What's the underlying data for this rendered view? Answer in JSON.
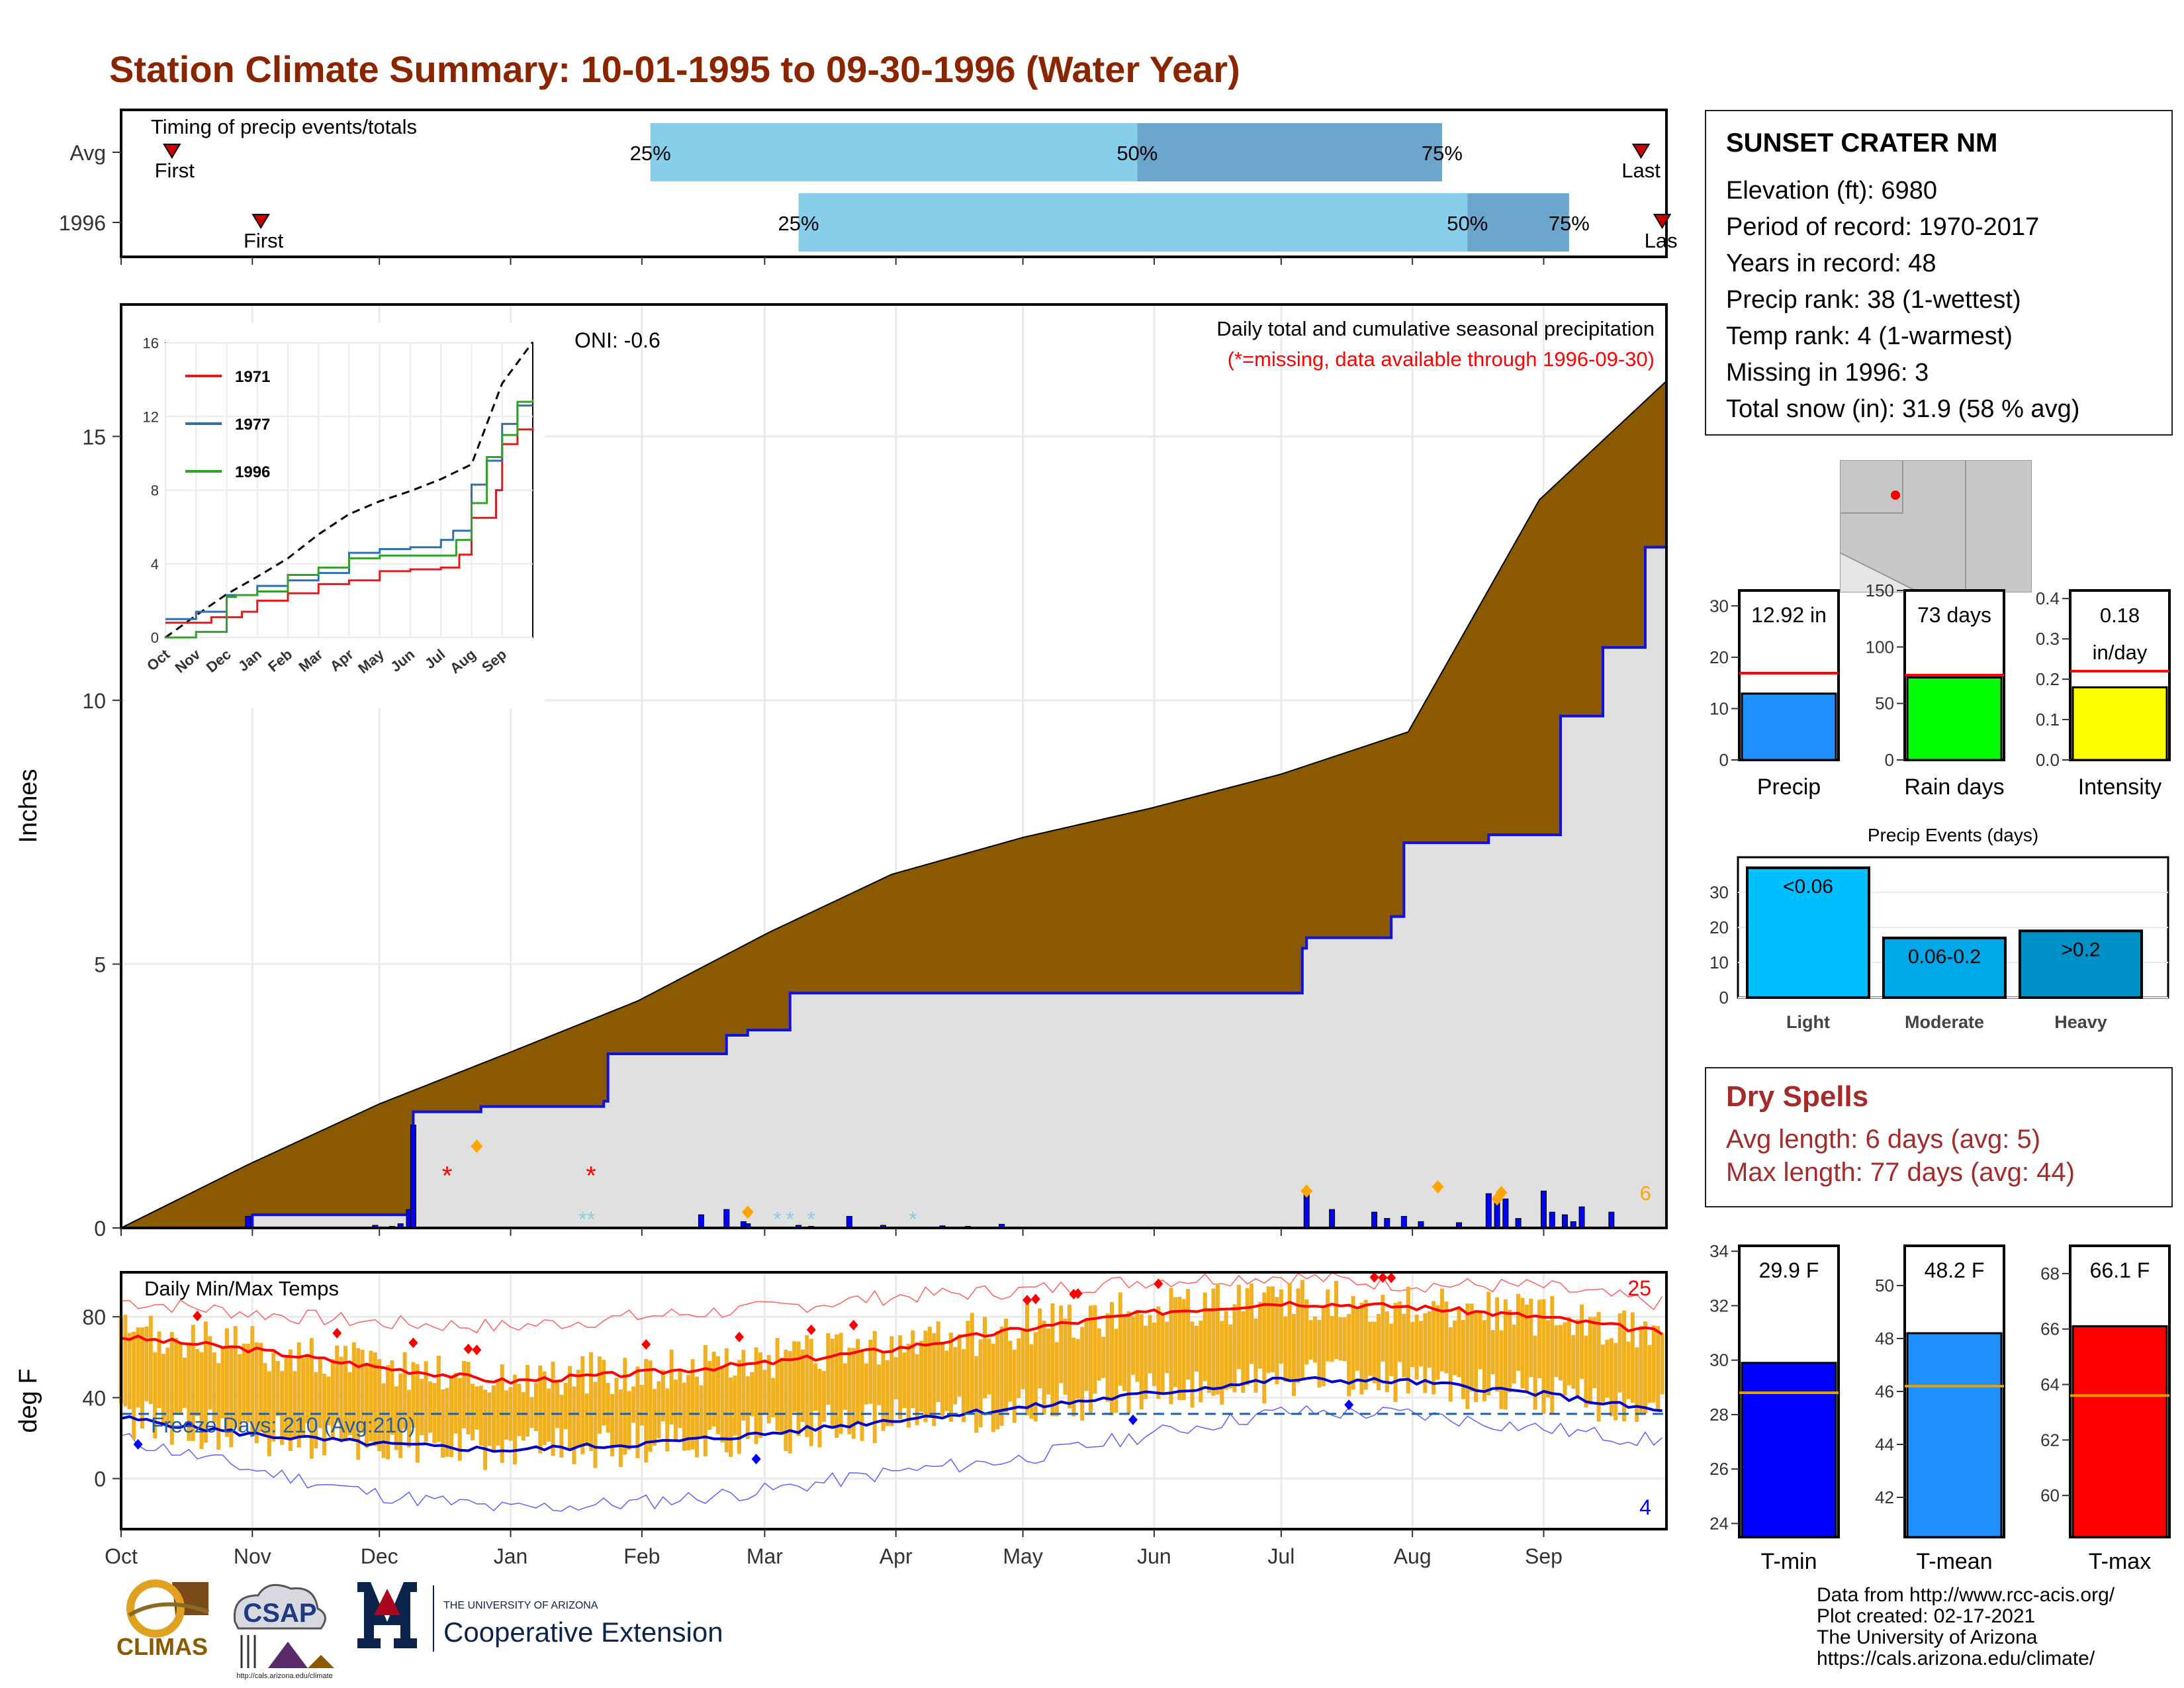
{
  "title": "Station Climate Summary: 10-01-1995 to 09-30-1996 (Water Year)",
  "station": {
    "name": "SUNSET CRATER NM",
    "lines": [
      "Elevation (ft): 6980",
      "Period of record: 1970-2017",
      "Years in record: 48",
      "Precip rank: 38 (1-wettest)",
      "Temp rank: 4 (1-warmest)",
      "Missing in 1996: 3",
      "Total snow (in): 31.9 (58 % avg)"
    ]
  },
  "dry_spells": {
    "title": "Dry Spells",
    "avg": "Avg length: 6 days (avg: 5)",
    "max": "Max length: 77 days (avg: 44)"
  },
  "credits": [
    "Data from http://www.rcc-acis.org/",
    "Plot created: 02-17-2021",
    "The University of Arizona",
    "https://cals.arizona.edu/climate/"
  ],
  "logos": {
    "climas": "CLIMAS",
    "csap": "CSAP",
    "csap_url": "http://cals.arizona.edu/climate",
    "ua_small": "THE UNIVERSITY OF ARIZONA",
    "ua_ext": "Cooperative Extension"
  },
  "colors": {
    "title": "#8b2500",
    "cum_avg": "#8b5a00",
    "cum_year": "#e0e0e0",
    "year_line": "#1010e0",
    "light_blue": "#87ceeb",
    "mid_blue": "#6ca6cd",
    "temp_bar": "#f0b020",
    "tmax_avg": "#ff0000",
    "tmin_avg": "#0000cc",
    "freeze": "#1f5faa"
  },
  "chart_data": [
    {
      "id": "timing",
      "type": "bar",
      "title": "Timing of precip events/totals",
      "categories": [
        "Avg",
        "1996"
      ],
      "x_domain": [
        0,
        365
      ],
      "rows": [
        {
          "label": "Avg",
          "first": 12,
          "p25": 125,
          "p50": 240,
          "p75": 312,
          "last": 359,
          "first_label": "First",
          "last_label": "Last"
        },
        {
          "label": "1996",
          "first": 33,
          "p25": 160,
          "p50": 318,
          "p75": 342,
          "last": 364,
          "first_label": "First",
          "last_label": "Las"
        }
      ],
      "pct_labels": [
        "25%",
        "50%",
        "75%"
      ]
    },
    {
      "id": "cumulative",
      "type": "area",
      "title": "Daily total and cumulative seasonal precipitation",
      "subtitle": "(*=missing, data available through 1996-09-30)",
      "ylabel": "Inches",
      "ylim": [
        0,
        17.5
      ],
      "yticks": [
        0,
        5,
        10,
        15
      ],
      "oni": "ONI: -0.6",
      "corner_count": "6",
      "avg_cumulative": {
        "x": [
          0,
          30,
          61,
          91,
          122,
          153,
          182,
          213,
          243,
          274,
          304,
          335,
          365
        ],
        "y": [
          0,
          1.2,
          2.35,
          3.3,
          4.3,
          5.6,
          6.7,
          7.4,
          7.95,
          8.6,
          9.4,
          13.8,
          16.05
        ]
      },
      "year_cumulative": {
        "x": [
          0,
          30,
          31,
          68,
          69,
          84,
          85,
          114,
          115,
          143,
          148,
          158,
          190,
          200,
          221,
          259,
          279,
          280,
          300,
          303,
          323,
          340,
          350,
          360,
          365
        ],
        "y": [
          0,
          0,
          0.25,
          0.28,
          2.2,
          2.2,
          2.3,
          2.4,
          3.3,
          3.65,
          3.75,
          4.45,
          4.45,
          4.45,
          4.45,
          4.45,
          5.3,
          5.5,
          5.9,
          7.3,
          7.45,
          9.7,
          11.0,
          12.9,
          12.92
        ]
      },
      "daily_precip": {
        "x": [
          30,
          60,
          64,
          66,
          68,
          69,
          137,
          143,
          147,
          148,
          160,
          163,
          172,
          180,
          194,
          200,
          208,
          280,
          286,
          296,
          299,
          303,
          307,
          316,
          323,
          325,
          327,
          330,
          336,
          338,
          341,
          343,
          345,
          352
        ],
        "y": [
          0.22,
          0.05,
          0.03,
          0.08,
          0.35,
          1.95,
          0.25,
          0.35,
          0.12,
          0.08,
          0.05,
          0.03,
          0.22,
          0.05,
          0.04,
          0.03,
          0.07,
          0.75,
          0.35,
          0.3,
          0.18,
          0.22,
          0.12,
          0.1,
          0.65,
          0.48,
          0.55,
          0.18,
          0.7,
          0.3,
          0.25,
          0.12,
          0.4,
          0.3
        ]
      },
      "missing_marks": [
        77,
        111
      ],
      "snow_marks": [
        109,
        111,
        155,
        158,
        163,
        187
      ],
      "highlight_marks": [
        {
          "x": 84,
          "y": 1.55
        },
        {
          "x": 148,
          "y": 0.3
        },
        {
          "x": 280,
          "y": 0.7
        },
        {
          "x": 311,
          "y": 0.78
        },
        {
          "x": 325,
          "y": 0.55
        },
        {
          "x": 326,
          "y": 0.67
        }
      ],
      "red_highlights": [
        {
          "x": 77,
          "y": 1.0
        },
        {
          "x": 111,
          "y": 1.0
        }
      ],
      "x_tick_labels": [
        "Oct",
        "Nov",
        "Dec",
        "Jan",
        "Feb",
        "Mar",
        "Apr",
        "May",
        "Jun",
        "Jul",
        "Aug",
        "Sep"
      ],
      "x_tick_days": [
        0,
        31,
        61,
        92,
        123,
        152,
        183,
        213,
        244,
        274,
        305,
        336
      ]
    },
    {
      "id": "inset",
      "type": "line",
      "ylim": [
        0,
        16
      ],
      "yticks": [
        0,
        4,
        8,
        12,
        16
      ],
      "x_tick_labels": [
        "Oct",
        "Nov",
        "Dec",
        "Jan",
        "Feb",
        "Mar",
        "Apr",
        "May",
        "Jun",
        "Jul",
        "Aug",
        "Sep"
      ],
      "series": [
        {
          "name": "1971",
          "color": "#e31a1c",
          "x": [
            0,
            1.5,
            2.5,
            3.0,
            4.0,
            5.0,
            6.0,
            7.0,
            8.0,
            9.0,
            9.6,
            10.0,
            10.8,
            11.0,
            11.5,
            12.0
          ],
          "y": [
            0.8,
            1.1,
            1.4,
            2.0,
            2.4,
            2.9,
            3.1,
            3.6,
            3.7,
            3.8,
            4.5,
            6.5,
            8.0,
            10.5,
            11.3,
            11.4
          ]
        },
        {
          "name": "1977",
          "color": "#3070b0",
          "x": [
            0,
            1.0,
            2.0,
            3.0,
            4.0,
            5.0,
            6.0,
            7.0,
            8.0,
            9.0,
            9.4,
            10.0,
            10.5,
            11.0,
            11.5,
            12.0
          ],
          "y": [
            1.0,
            1.4,
            2.3,
            2.8,
            3.1,
            3.5,
            4.6,
            4.8,
            4.9,
            5.3,
            5.8,
            8.3,
            9.6,
            11.6,
            12.6,
            12.6
          ]
        },
        {
          "name": "1996",
          "color": "#33a02c",
          "x": [
            0,
            1.0,
            2.0,
            2.3,
            3.0,
            4.0,
            5.0,
            6.0,
            7.0,
            8.0,
            9.0,
            9.5,
            10.0,
            10.5,
            11.0,
            11.5,
            12.0
          ],
          "y": [
            0,
            0.3,
            2.2,
            2.3,
            2.5,
            3.4,
            3.8,
            4.3,
            4.45,
            4.45,
            4.45,
            5.3,
            7.3,
            9.8,
            11.0,
            12.8,
            12.92
          ]
        }
      ],
      "average": {
        "x": [
          0,
          1,
          2,
          3,
          4,
          5,
          6,
          7,
          8,
          9,
          10,
          11,
          12
        ],
        "y": [
          0,
          1.2,
          2.35,
          3.3,
          4.3,
          5.6,
          6.7,
          7.4,
          7.95,
          8.6,
          9.4,
          13.8,
          16.05
        ]
      }
    },
    {
      "id": "temps",
      "type": "bar",
      "title": "Daily Min/Max Temps",
      "ylabel": "deg F",
      "ylim": [
        -25,
        102
      ],
      "yticks": [
        0,
        40,
        80
      ],
      "freeze_label": "Freeze Days: 210 (Avg:210)",
      "freeze_line": 32,
      "hot_count": "25",
      "cold_count": "4",
      "tmax_avg": {
        "x": [
          0,
          30,
          61,
          91,
          122,
          152,
          182,
          213,
          243,
          274,
          304,
          335,
          365
        ],
        "y": [
          70,
          64,
          55,
          48,
          52,
          57,
          64,
          74,
          82,
          87,
          85,
          80,
          72
        ]
      },
      "tmin_avg": {
        "x": [
          0,
          30,
          61,
          91,
          122,
          152,
          182,
          213,
          243,
          274,
          304,
          335,
          365
        ],
        "y": [
          30,
          22,
          17,
          14,
          17,
          22,
          29,
          35,
          42,
          49,
          48,
          42,
          33
        ]
      },
      "record_hi": {
        "x": [
          0,
          30,
          61,
          91,
          122,
          152,
          182,
          213,
          243,
          274,
          304,
          335,
          365
        ],
        "y": [
          88,
          82,
          77,
          75,
          80,
          84,
          90,
          93,
          98,
          100,
          96,
          95,
          86
        ]
      },
      "record_lo": {
        "x": [
          0,
          30,
          61,
          91,
          122,
          152,
          182,
          213,
          243,
          274,
          304,
          335,
          365
        ],
        "y": [
          20,
          5,
          -8,
          -15,
          -12,
          -6,
          3,
          10,
          22,
          33,
          32,
          25,
          18
        ]
      },
      "x_tick_labels": [
        "Oct",
        "Nov",
        "Dec",
        "Jan",
        "Feb",
        "Mar",
        "Apr",
        "May",
        "Jun",
        "Jul",
        "Aug",
        "Sep"
      ],
      "x_tick_days": [
        0,
        31,
        61,
        92,
        123,
        152,
        183,
        213,
        244,
        274,
        305,
        336
      ]
    },
    {
      "id": "precip_bars",
      "type": "bar",
      "panels": [
        {
          "label": "Precip",
          "value_label": "12.92 in",
          "value": 12.92,
          "avg": 16.9,
          "ylim": [
            0,
            33
          ],
          "yticks": [
            0,
            10,
            20,
            30
          ],
          "color": "#1e90ff"
        },
        {
          "label": "Rain days",
          "value_label": "73 days",
          "value": 73,
          "avg": 75,
          "ylim": [
            0,
            150
          ],
          "yticks": [
            0,
            50,
            100,
            150
          ],
          "color": "#00ff00"
        },
        {
          "label": "Intensity",
          "value_labels": [
            "0.18",
            "in/day"
          ],
          "value": 0.18,
          "avg": 0.22,
          "ylim": [
            0,
            0.42
          ],
          "yticks": [
            0.0,
            0.1,
            0.2,
            0.3,
            0.4
          ],
          "color": "#ffff00"
        }
      ]
    },
    {
      "id": "events",
      "type": "bar",
      "title": "Precip Events (days)",
      "categories": [
        "Light",
        "Moderate",
        "Heavy"
      ],
      "values": [
        37,
        17,
        19
      ],
      "bar_labels": [
        "<0.06",
        "0.06-0.2",
        ">0.2"
      ],
      "ylim": [
        0,
        40
      ],
      "yticks": [
        0,
        10,
        20,
        30
      ],
      "colors": [
        "#00bfff",
        "#00a8e8",
        "#0090c8"
      ]
    },
    {
      "id": "temp_bars",
      "type": "bar",
      "panels": [
        {
          "label": "T-min",
          "value_label": "29.9 F",
          "value": 29.9,
          "avg": 28.8,
          "ylim": [
            23.5,
            34.2
          ],
          "yticks": [
            24,
            26,
            28,
            30,
            32,
            34
          ],
          "color": "#0000ff"
        },
        {
          "label": "T-mean",
          "value_label": "48.2 F",
          "value": 48.2,
          "avg": 46.2,
          "ylim": [
            40.5,
            51.5
          ],
          "yticks": [
            42,
            44,
            46,
            48,
            50
          ],
          "color": "#1e90ff"
        },
        {
          "label": "T-max",
          "value_label": "66.1 F",
          "value": 66.1,
          "avg": 63.6,
          "ylim": [
            58.5,
            69
          ],
          "yticks": [
            60,
            62,
            64,
            66,
            68
          ],
          "color": "#ff0000"
        }
      ]
    }
  ]
}
